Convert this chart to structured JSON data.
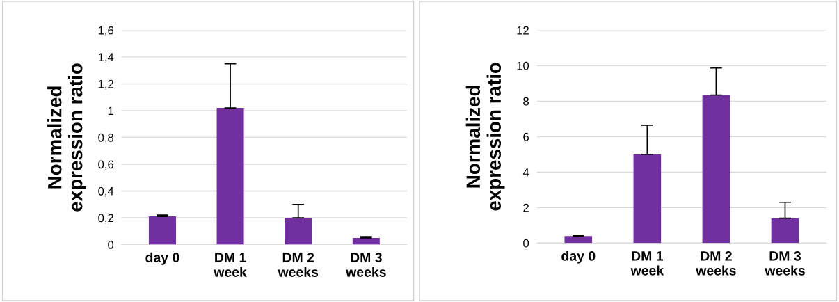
{
  "chart_data": [
    {
      "type": "bar",
      "ylabel": "Normalized\nexpression ratio",
      "categories": [
        "day 0",
        "DM 1\nweek",
        "DM 2\nweeks",
        "DM 3\nweeks"
      ],
      "values": [
        0.21,
        1.02,
        0.2,
        0.05
      ],
      "errors": [
        [
          0.21,
          0.22
        ],
        [
          1.02,
          1.35
        ],
        [
          0.2,
          0.3
        ],
        [
          0.05,
          0.06
        ]
      ],
      "color": "#7030a0",
      "ylim": [
        0,
        1.6
      ],
      "yticks": [
        0,
        {
          "value": 0.2,
          "label": "0,2"
        },
        {
          "value": 0.4,
          "label": "0,4"
        },
        {
          "value": 0.6,
          "label": "0,6"
        },
        {
          "value": 0.8,
          "label": "0,8"
        },
        1,
        {
          "value": 1.2,
          "label": "1,2"
        },
        {
          "value": 1.4,
          "label": "1,4"
        },
        {
          "value": 1.6,
          "label": "1,6"
        }
      ],
      "grid": "y"
    },
    {
      "type": "bar",
      "ylabel": "Normalized\nexpression ratio",
      "categories": [
        "day 0",
        "DM 1\nweek",
        "DM 2\nweeks",
        "DM 3\nweeks"
      ],
      "values": [
        0.4,
        5.0,
        8.35,
        1.4
      ],
      "errors": [
        [
          0.4,
          0.43
        ],
        [
          5.0,
          6.65
        ],
        [
          8.35,
          9.87
        ],
        [
          1.4,
          2.3
        ]
      ],
      "color": "#7030a0",
      "ylim": [
        0,
        12
      ],
      "yticks": [
        0,
        2,
        4,
        6,
        8,
        10,
        12
      ],
      "grid": "y"
    }
  ]
}
